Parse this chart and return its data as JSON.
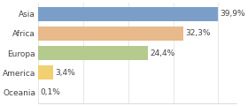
{
  "categories": [
    "Asia",
    "Africa",
    "Europa",
    "America",
    "Oceania"
  ],
  "values": [
    39.9,
    32.3,
    24.4,
    3.4,
    0.1
  ],
  "labels": [
    "39,9%",
    "32,3%",
    "24,4%",
    "3,4%",
    "0,1%"
  ],
  "bar_colors": [
    "#7b9ec9",
    "#e8b98a",
    "#b5ca8d",
    "#f0d070",
    "#a0c0b0"
  ],
  "background_color": "#ffffff",
  "xlim": [
    0,
    44
  ],
  "bar_height": 0.72,
  "label_fontsize": 6.5,
  "tick_fontsize": 6.5,
  "grid_color": "#dddddd",
  "grid_x_vals": [
    0,
    10,
    20,
    30,
    40
  ]
}
